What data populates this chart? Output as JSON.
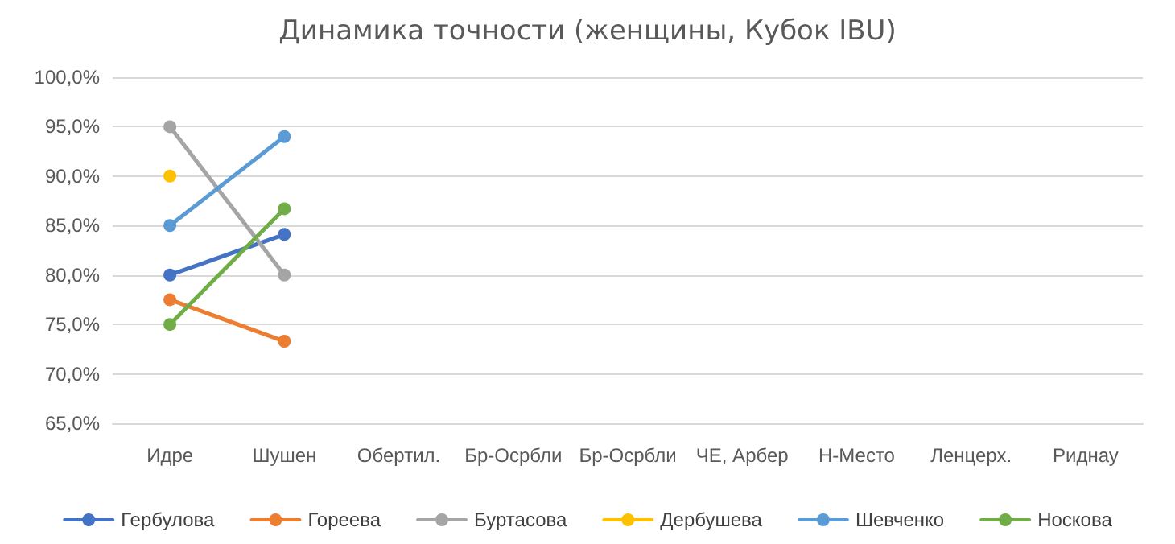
{
  "chart_data": {
    "type": "line",
    "title": "Динамика точности (женщины, Кубок IBU)",
    "categories": [
      "Идре",
      "Шушен",
      "Обертил.",
      "Бр-Осрбли",
      "Бр-Осрбли",
      "ЧЕ, Арбер",
      "Н-Место",
      "Ленцерх.",
      "Риднау"
    ],
    "series": [
      {
        "name": "Гербулова",
        "color": "#4472c4",
        "values": [
          80,
          84.1,
          null,
          null,
          null,
          null,
          null,
          null,
          null
        ]
      },
      {
        "name": "Гореева",
        "color": "#ed7d31",
        "values": [
          77.5,
          73.3,
          null,
          null,
          null,
          null,
          null,
          null,
          null
        ]
      },
      {
        "name": "Буртасова",
        "color": "#a5a5a5",
        "values": [
          95,
          80,
          null,
          null,
          null,
          null,
          null,
          null,
          null
        ]
      },
      {
        "name": "Дербушева",
        "color": "#ffc000",
        "values": [
          90,
          null,
          null,
          null,
          null,
          null,
          null,
          null,
          null
        ]
      },
      {
        "name": "Шевченко",
        "color": "#5b9bd5",
        "values": [
          85,
          94,
          null,
          null,
          null,
          null,
          null,
          null,
          null
        ]
      },
      {
        "name": "Носкова",
        "color": "#70ad47",
        "values": [
          75,
          86.7,
          null,
          null,
          null,
          null,
          null,
          null,
          null
        ]
      }
    ],
    "ylim": [
      65,
      100
    ],
    "yticks": [
      {
        "value": 65,
        "label": "65,0%"
      },
      {
        "value": 70,
        "label": "70,0%"
      },
      {
        "value": 75,
        "label": "75,0%"
      },
      {
        "value": 80,
        "label": "80,0%"
      },
      {
        "value": 85,
        "label": "85,0%"
      },
      {
        "value": 90,
        "label": "90,0%"
      },
      {
        "value": 95,
        "label": "95,0%"
      },
      {
        "value": 100,
        "label": "100,0%"
      }
    ],
    "grid": "y",
    "legend": "bottom",
    "marker": "circle",
    "line_style": "solid"
  }
}
